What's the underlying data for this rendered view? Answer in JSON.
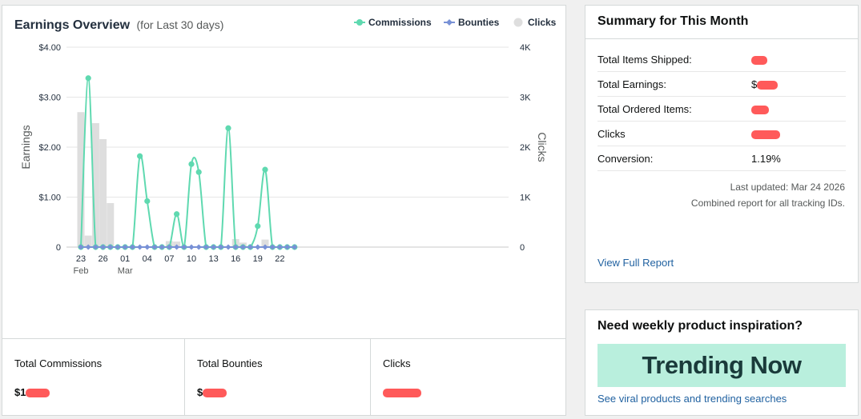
{
  "earnings": {
    "stats": [
      {
        "label": "Total Commissions",
        "value_prefix": "$1"
      },
      {
        "label": "Total Bounties",
        "value_prefix": "$"
      },
      {
        "label": "Clicks",
        "value_prefix": ""
      }
    ]
  },
  "summary": {
    "title": "Summary for This Month",
    "rows": [
      {
        "label": "Total Items Shipped:",
        "value": ""
      },
      {
        "label": "Total Earnings:",
        "value": "$"
      },
      {
        "label": "Total Ordered Items:",
        "value": ""
      },
      {
        "label": "Clicks",
        "value": ""
      },
      {
        "label": "Conversion:",
        "value": "1.19%"
      }
    ],
    "last_updated": "Last updated: Mar 24 2026",
    "combined_note": "Combined report for all tracking IDs.",
    "view_full_report": "View Full Report"
  },
  "inspiration": {
    "title": "Need weekly product inspiration?",
    "banner_text": "Trending Now",
    "link": "See viral products and trending searches"
  },
  "chart_data": {
    "type": "line",
    "title": "Earnings Overview",
    "subtitle": "(for Last 30 days)",
    "ylabel": "Earnings",
    "y2label": "Clicks",
    "ylim": [
      0,
      4
    ],
    "y2lim": [
      0,
      4000
    ],
    "y_ticks": [
      "0",
      "$1.00",
      "$2.00",
      "$3.00",
      "$4.00"
    ],
    "y2_ticks": [
      "0",
      "1K",
      "2K",
      "3K",
      "4K"
    ],
    "x_tick_labels": [
      {
        "index": 0,
        "day": "23",
        "month": "Feb"
      },
      {
        "index": 3,
        "day": "26",
        "month": ""
      },
      {
        "index": 6,
        "day": "01",
        "month": "Mar"
      },
      {
        "index": 9,
        "day": "04",
        "month": ""
      },
      {
        "index": 12,
        "day": "07",
        "month": ""
      },
      {
        "index": 15,
        "day": "10",
        "month": ""
      },
      {
        "index": 18,
        "day": "13",
        "month": ""
      },
      {
        "index": 21,
        "day": "16",
        "month": ""
      },
      {
        "index": 24,
        "day": "19",
        "month": ""
      },
      {
        "index": 27,
        "day": "22",
        "month": ""
      }
    ],
    "x": [
      "Feb 23",
      "Feb 24",
      "Feb 25",
      "Feb 26",
      "Feb 27",
      "Feb 28",
      "Mar 01",
      "Mar 02",
      "Mar 03",
      "Mar 04",
      "Mar 05",
      "Mar 06",
      "Mar 07",
      "Mar 08",
      "Mar 09",
      "Mar 10",
      "Mar 11",
      "Mar 12",
      "Mar 13",
      "Mar 14",
      "Mar 15",
      "Mar 16",
      "Mar 17",
      "Mar 18",
      "Mar 19",
      "Mar 20",
      "Mar 21",
      "Mar 22",
      "Mar 23",
      "Mar 24"
    ],
    "legend_placement": "top-right",
    "grid": true,
    "series": [
      {
        "name": "Commissions",
        "kind": "line",
        "axis": "left",
        "color": "#5fd9b0",
        "values": [
          0,
          3.38,
          0,
          0,
          0,
          0,
          0,
          0,
          1.82,
          0.92,
          0,
          0,
          0,
          0.66,
          0,
          1.66,
          1.5,
          0,
          0,
          0,
          2.38,
          0,
          0,
          0,
          0.42,
          1.55,
          0,
          0,
          0,
          0
        ]
      },
      {
        "name": "Bounties",
        "kind": "line",
        "axis": "left",
        "color": "#7891d6",
        "values": [
          0,
          0,
          0,
          0,
          0,
          0,
          0,
          0,
          0,
          0,
          0,
          0,
          0,
          0,
          0,
          0,
          0,
          0,
          0,
          0,
          0,
          0,
          0,
          0,
          0,
          0,
          0,
          0,
          0,
          0
        ]
      },
      {
        "name": "Clicks",
        "kind": "bar",
        "axis": "right",
        "color": "#dedede",
        "values": [
          2700,
          230,
          2480,
          2160,
          880,
          0,
          0,
          0,
          0,
          0,
          0,
          0,
          120,
          110,
          0,
          0,
          0,
          0,
          0,
          0,
          0,
          160,
          90,
          0,
          0,
          150,
          0,
          0,
          0,
          0
        ]
      }
    ]
  }
}
